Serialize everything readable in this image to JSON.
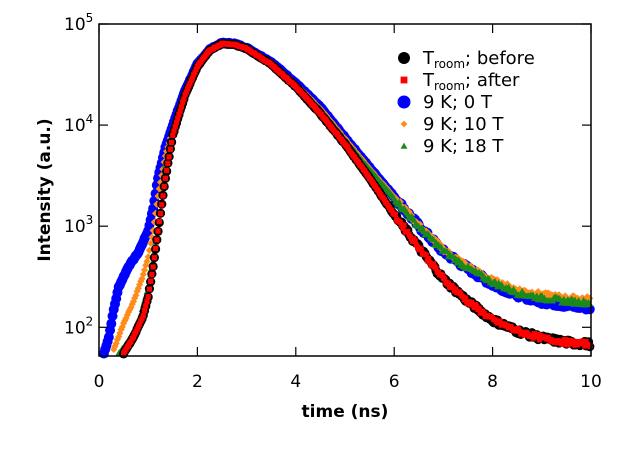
{
  "chart_data": {
    "type": "scatter",
    "xlabel": "time (ns)",
    "ylabel": "Intensity (a.u.)",
    "xlim": [
      0,
      10
    ],
    "ylim": [
      52,
      100000
    ],
    "yscale": "log",
    "grid": false,
    "legend_placement": "top-right",
    "x_ticks": [
      "0",
      "2",
      "4",
      "6",
      "8",
      "10"
    ],
    "y_ticks": [
      {
        "base": "10",
        "exp": "2"
      },
      {
        "base": "10",
        "exp": "3"
      },
      {
        "base": "10",
        "exp": "4"
      },
      {
        "base": "10",
        "exp": "5"
      }
    ],
    "series": [
      {
        "name": "T",
        "name_sub": "room",
        "name_rest": "; before",
        "color": "#000000",
        "marker": "circle",
        "points": [
          [
            0.5,
            55
          ],
          [
            0.7,
            80
          ],
          [
            0.9,
            130
          ],
          [
            1.0,
            200
          ],
          [
            1.1,
            400
          ],
          [
            1.2,
            900
          ],
          [
            1.35,
            3000
          ],
          [
            1.5,
            8000
          ],
          [
            1.75,
            20000
          ],
          [
            2,
            38000
          ],
          [
            2.25,
            55000
          ],
          [
            2.5,
            64000
          ],
          [
            2.75,
            63000
          ],
          [
            3,
            57000
          ],
          [
            3.5,
            40000
          ],
          [
            4,
            24000
          ],
          [
            4.5,
            13000
          ],
          [
            5,
            6500
          ],
          [
            5.5,
            3000
          ],
          [
            6,
            1300
          ],
          [
            6.5,
            620
          ],
          [
            7,
            300
          ],
          [
            7.5,
            180
          ],
          [
            8,
            118
          ],
          [
            8.5,
            92
          ],
          [
            9,
            78
          ],
          [
            9.5,
            71
          ],
          [
            10,
            68
          ]
        ]
      },
      {
        "name": "T",
        "name_sub": "room",
        "name_rest": "; after",
        "color": "#ff0000",
        "marker": "square",
        "points": [
          [
            0.5,
            55
          ],
          [
            0.7,
            80
          ],
          [
            0.9,
            130
          ],
          [
            1.0,
            200
          ],
          [
            1.1,
            400
          ],
          [
            1.2,
            900
          ],
          [
            1.35,
            3000
          ],
          [
            1.5,
            8000
          ],
          [
            1.75,
            20000
          ],
          [
            2,
            38000
          ],
          [
            2.25,
            55000
          ],
          [
            2.5,
            64000
          ],
          [
            2.75,
            63000
          ],
          [
            3,
            57000
          ],
          [
            3.5,
            40000
          ],
          [
            4,
            24000
          ],
          [
            4.5,
            13000
          ],
          [
            5,
            6500
          ],
          [
            5.5,
            3000
          ],
          [
            6,
            1300
          ],
          [
            6.5,
            620
          ],
          [
            7,
            300
          ],
          [
            7.5,
            180
          ],
          [
            8,
            118
          ],
          [
            8.5,
            92
          ],
          [
            9,
            78
          ],
          [
            9.5,
            71
          ],
          [
            10,
            68
          ]
        ]
      },
      {
        "name": "9 K; 0 T",
        "color": "#0000ff",
        "marker": "circle",
        "points": [
          [
            0.1,
            55
          ],
          [
            0.2,
            80
          ],
          [
            0.3,
            150
          ],
          [
            0.4,
            250
          ],
          [
            0.6,
            400
          ],
          [
            0.8,
            550
          ],
          [
            1.0,
            900
          ],
          [
            1.1,
            1500
          ],
          [
            1.2,
            3000
          ],
          [
            1.35,
            6000
          ],
          [
            1.5,
            10000
          ],
          [
            1.75,
            22000
          ],
          [
            2,
            40000
          ],
          [
            2.25,
            56000
          ],
          [
            2.5,
            65000
          ],
          [
            2.75,
            64000
          ],
          [
            3,
            58000
          ],
          [
            3.5,
            42000
          ],
          [
            4,
            26000
          ],
          [
            4.5,
            15000
          ],
          [
            5,
            7500
          ],
          [
            5.5,
            3800
          ],
          [
            6,
            1950
          ],
          [
            6.5,
            1000
          ],
          [
            7,
            560
          ],
          [
            7.5,
            380
          ],
          [
            8,
            265
          ],
          [
            8.5,
            210
          ],
          [
            9,
            180
          ],
          [
            9.5,
            165
          ],
          [
            10,
            155
          ]
        ]
      },
      {
        "name": "9 K; 10 T",
        "color": "#ff8c1a",
        "marker": "diamond",
        "points": [
          [
            0.3,
            60
          ],
          [
            0.5,
            110
          ],
          [
            0.7,
            180
          ],
          [
            0.9,
            330
          ],
          [
            1.0,
            500
          ],
          [
            1.1,
            900
          ],
          [
            1.2,
            2000
          ],
          [
            1.35,
            5000
          ],
          [
            1.5,
            9000
          ],
          [
            1.75,
            21000
          ],
          [
            2,
            39000
          ],
          [
            2.25,
            55000
          ],
          [
            2.5,
            64000
          ],
          [
            2.75,
            63000
          ],
          [
            3,
            57000
          ],
          [
            3.5,
            41000
          ],
          [
            4,
            25500
          ],
          [
            4.5,
            14500
          ],
          [
            5,
            7300
          ],
          [
            5.5,
            3700
          ],
          [
            6,
            1950
          ],
          [
            6.5,
            1020
          ],
          [
            7,
            590
          ],
          [
            7.5,
            400
          ],
          [
            8,
            290
          ],
          [
            8.5,
            235
          ],
          [
            9,
            210
          ],
          [
            9.5,
            195
          ],
          [
            10,
            190
          ]
        ]
      },
      {
        "name": "9 K; 18 T",
        "color": "#1a8a1a",
        "marker": "triangle",
        "points": [
          [
            0.4,
            55
          ],
          [
            0.6,
            75
          ],
          [
            0.8,
            110
          ],
          [
            1.0,
            250
          ],
          [
            1.1,
            450
          ],
          [
            1.2,
            1100
          ],
          [
            1.35,
            4000
          ],
          [
            1.5,
            8500
          ],
          [
            1.75,
            20500
          ],
          [
            2,
            38500
          ],
          [
            2.25,
            54500
          ],
          [
            2.5,
            63500
          ],
          [
            2.75,
            62500
          ],
          [
            3,
            56500
          ],
          [
            3.5,
            40500
          ],
          [
            4,
            25000
          ],
          [
            4.5,
            14300
          ],
          [
            5,
            7200
          ],
          [
            5.5,
            3650
          ],
          [
            6,
            1900
          ],
          [
            6.5,
            990
          ],
          [
            7,
            570
          ],
          [
            7.5,
            385
          ],
          [
            8,
            280
          ],
          [
            8.5,
            220
          ],
          [
            9,
            195
          ],
          [
            9.5,
            182
          ],
          [
            10,
            175
          ]
        ]
      }
    ]
  }
}
